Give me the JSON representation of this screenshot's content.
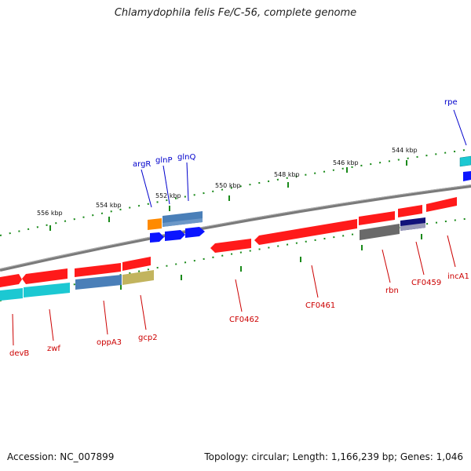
{
  "title": "Chlamydophila felis Fe/C-56, complete genome",
  "footer": {
    "accession": "Accession: NC_007899",
    "summary": "Topology: circular; Length: 1,166,239 bp; Genes: 1,046"
  },
  "colors": {
    "backbone": "#888888",
    "gene_red": "#ff1a1a",
    "gene_blue": "#0b15ff",
    "gene_cyan": "#1cc8d2",
    "gene_steel": "#4a7fb8",
    "gene_orange": "#ff8a00",
    "gene_khaki": "#c2b45e",
    "gene_gray": "#6a6a6a",
    "gene_navy": "#12127a",
    "tick": "#1a8a1a",
    "label_red": "#cc0000",
    "label_blue": "#0000cc"
  },
  "scale_ticks": [
    "544 kbp",
    "546 kbp",
    "548 kbp",
    "550 kbp",
    "552 kbp",
    "554 kbp",
    "556 kbp"
  ],
  "gene_labels_top": [
    "rpe",
    "argR",
    "glnP",
    "glnQ"
  ],
  "gene_labels_bottom": [
    "devB",
    "zwf",
    "oppA3",
    "gcp2",
    "CF0462",
    "CF0461",
    "rbn",
    "CF0459",
    "incA1"
  ]
}
